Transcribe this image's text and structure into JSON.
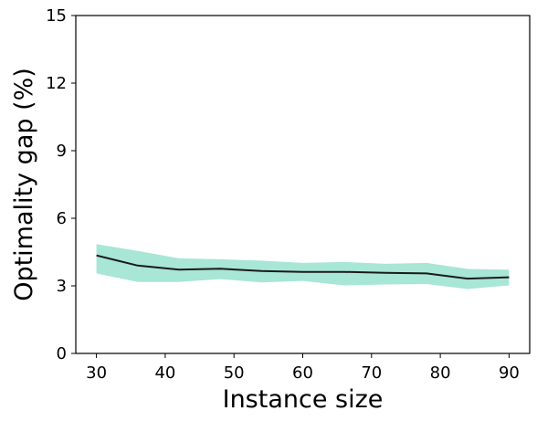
{
  "chart_data": {
    "type": "line",
    "title": "",
    "xlabel": "Instance size",
    "ylabel": "Optimality gap (%)",
    "xlim": [
      27,
      93
    ],
    "ylim": [
      0,
      15
    ],
    "xticks": [
      30,
      40,
      50,
      60,
      70,
      80,
      90
    ],
    "yticks": [
      0,
      3,
      6,
      9,
      12,
      15
    ],
    "grid": false,
    "legend": "none",
    "series": [
      {
        "x": [
          30,
          36,
          42,
          48,
          54,
          60,
          66,
          72,
          78,
          84,
          90
        ],
        "y": [
          4.35,
          3.9,
          3.72,
          3.76,
          3.66,
          3.62,
          3.62,
          3.58,
          3.55,
          3.32,
          3.38
        ],
        "upper": [
          4.85,
          4.55,
          4.22,
          4.18,
          4.12,
          4.02,
          4.06,
          3.98,
          4.02,
          3.75,
          3.72
        ],
        "lower": [
          3.55,
          3.17,
          3.17,
          3.3,
          3.15,
          3.22,
          3.02,
          3.06,
          3.08,
          2.86,
          3.02
        ],
        "line_color": "#1a1a1a",
        "band_color": "#a8e6d6"
      }
    ]
  }
}
